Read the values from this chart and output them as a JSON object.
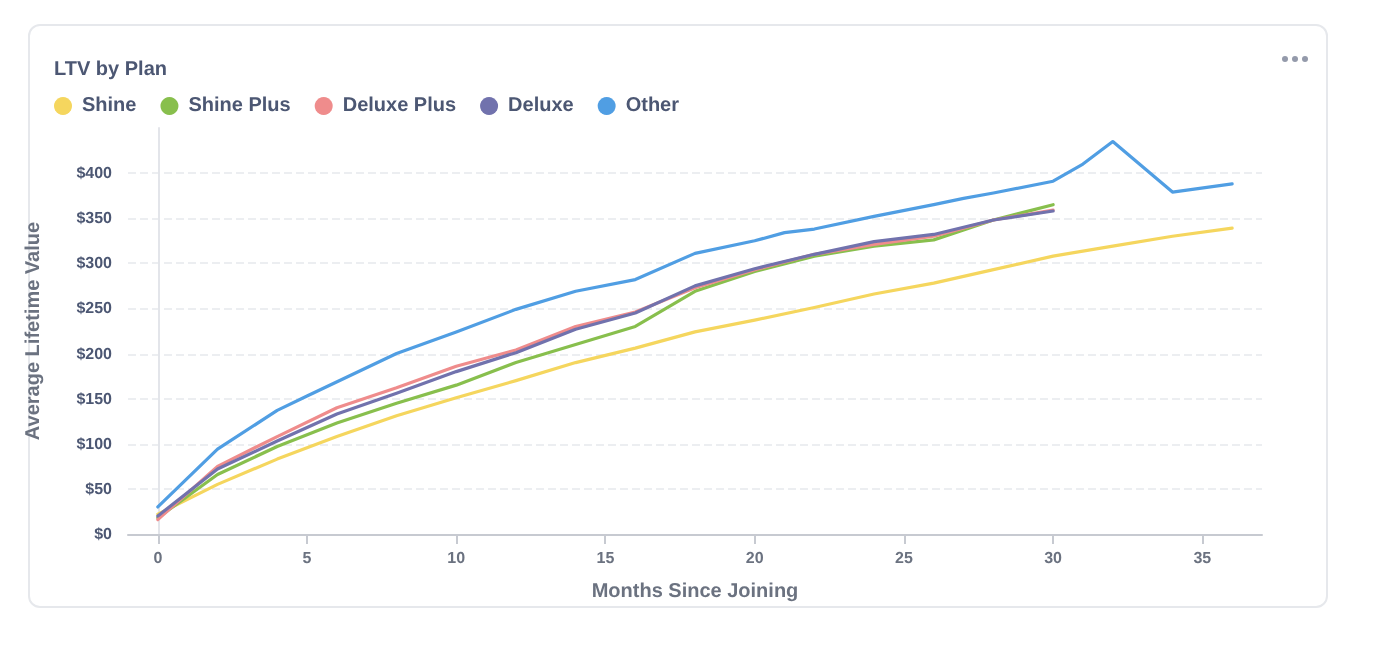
{
  "chart_data": {
    "type": "line",
    "title": "LTV by Plan",
    "xlabel": "Months Since Joining",
    "ylabel": "Average Lifetime Value",
    "x": [
      0,
      2,
      4,
      6,
      8,
      10,
      12,
      14,
      16,
      18,
      20,
      22,
      24,
      26,
      28,
      30
    ],
    "series": [
      {
        "name": "Shine",
        "color": "#f5d65e",
        "x": [
          0,
          2,
          4,
          6,
          8,
          10,
          12,
          14,
          16,
          18,
          20,
          22,
          24,
          26,
          28,
          30,
          32,
          34,
          36
        ],
        "values": [
          22,
          55,
          83,
          108,
          131,
          151,
          170,
          190,
          206,
          224,
          237,
          251,
          266,
          278,
          293,
          308,
          319,
          330,
          339
        ]
      },
      {
        "name": "Shine Plus",
        "color": "#88bf4d",
        "values": [
          18,
          66,
          97,
          123,
          145,
          165,
          190,
          210,
          230,
          269,
          291,
          308,
          319,
          326,
          348,
          365
        ]
      },
      {
        "name": "Deluxe Plus",
        "color": "#ef8c8c",
        "values": [
          16,
          75,
          108,
          140,
          162,
          186,
          204,
          230,
          246,
          273,
          293,
          310,
          321,
          330,
          348,
          359
        ]
      },
      {
        "name": "Deluxe",
        "color": "#7172ad",
        "values": [
          20,
          72,
          103,
          133,
          156,
          180,
          201,
          227,
          245,
          275,
          294,
          310,
          324,
          332,
          348,
          358
        ]
      },
      {
        "name": "Other",
        "color": "#509ee3",
        "x": [
          0,
          2,
          4,
          5,
          8,
          10,
          12,
          14,
          16,
          18,
          20,
          21,
          22,
          24,
          26,
          27,
          28,
          30,
          31,
          32,
          34,
          36
        ],
        "values": [
          30,
          94,
          137,
          153,
          200,
          224,
          249,
          269,
          282,
          311,
          325,
          334,
          338,
          352,
          365,
          372,
          378,
          391,
          410,
          435,
          379,
          388
        ]
      }
    ],
    "xlim": [
      -1,
      37
    ],
    "xticks": [
      0,
      5,
      10,
      15,
      20,
      25,
      30,
      35
    ],
    "ylim": [
      0,
      450
    ],
    "yticks": [
      {
        "value": 0,
        "label": "$0"
      },
      {
        "value": 50,
        "label": "$50"
      },
      {
        "value": 100,
        "label": "$100"
      },
      {
        "value": 150,
        "label": "$150"
      },
      {
        "value": 200,
        "label": "$200"
      },
      {
        "value": 250,
        "label": "$250"
      },
      {
        "value": 300,
        "label": "$300"
      },
      {
        "value": 350,
        "label": "$350"
      },
      {
        "value": 400,
        "label": "$400"
      }
    ],
    "grid": "y",
    "legend": "top left",
    "marker": "none",
    "line_style": "solid"
  }
}
